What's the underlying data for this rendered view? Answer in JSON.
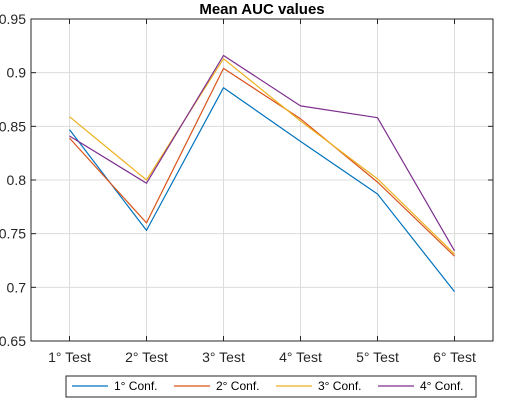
{
  "chart_data": {
    "type": "line",
    "title": "Mean AUC values",
    "xlabel": "",
    "ylabel": "",
    "categories": [
      "1° Test",
      "2° Test",
      "3° Test",
      "4° Test",
      "5° Test",
      "6° Test"
    ],
    "ylim": [
      0.65,
      0.95
    ],
    "yticks": [
      0.65,
      0.7,
      0.75,
      0.8,
      0.85,
      0.9,
      0.95
    ],
    "ytick_labels": [
      "0.65",
      "0.7",
      "0.75",
      "0.8",
      "0.85",
      "0.9",
      "0.95"
    ],
    "grid": true,
    "legend_position": "bottom",
    "series": [
      {
        "name": "1° Conf.",
        "color": "#0072BD",
        "values": [
          0.847,
          0.753,
          0.886,
          0.836,
          0.787,
          0.696
        ]
      },
      {
        "name": "2° Conf.",
        "color": "#D95319",
        "values": [
          0.839,
          0.76,
          0.904,
          0.857,
          0.798,
          0.729
        ]
      },
      {
        "name": "3° Conf.",
        "color": "#EDB120",
        "values": [
          0.859,
          0.8,
          0.913,
          0.855,
          0.801,
          0.731
        ]
      },
      {
        "name": "4° Conf.",
        "color": "#7E2F8E",
        "values": [
          0.841,
          0.797,
          0.916,
          0.869,
          0.858,
          0.734
        ]
      }
    ]
  }
}
